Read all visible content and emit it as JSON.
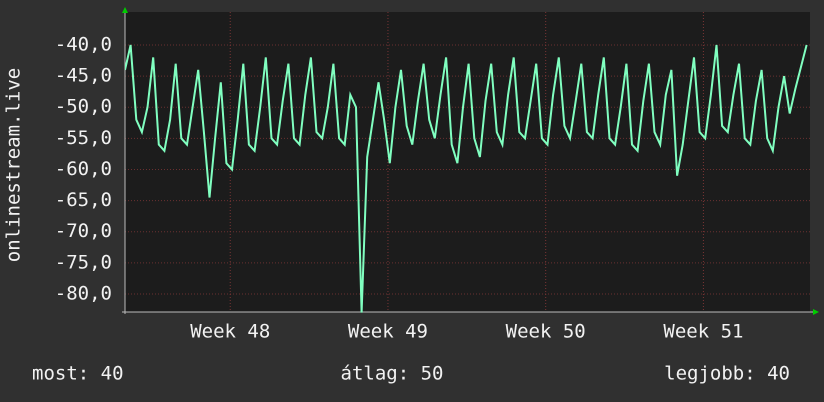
{
  "chart_data": {
    "type": "line",
    "y_label": "onlinestream.live",
    "annotations": [
      "most: 40",
      "átlag: 50",
      "legjobb: 40"
    ],
    "xlim": [
      0,
      30.4
    ],
    "xticks": [
      {
        "value": 4.67,
        "label": "Week 48"
      },
      {
        "value": 11.67,
        "label": "Week 49"
      },
      {
        "value": 18.67,
        "label": "Week 50"
      },
      {
        "value": 25.67,
        "label": "Week 51"
      }
    ],
    "ylim": [
      -82.9,
      -34.7
    ],
    "yticks": [
      {
        "value": -40,
        "label": "-40,0"
      },
      {
        "value": -45,
        "label": "-45,0"
      },
      {
        "value": -50,
        "label": "-50,0"
      },
      {
        "value": -55,
        "label": "-55,0"
      },
      {
        "value": -60,
        "label": "-60,0"
      },
      {
        "value": -65,
        "label": "-65,0"
      },
      {
        "value": -70,
        "label": "-70,0"
      },
      {
        "value": -75,
        "label": "-75,0"
      },
      {
        "value": -80,
        "label": "-80,0"
      }
    ],
    "grid": true,
    "x": [
      0,
      0.25,
      0.5,
      0.75,
      1,
      1.25,
      1.5,
      1.75,
      2,
      2.25,
      2.5,
      2.75,
      3,
      3.25,
      3.5,
      3.75,
      4,
      4.25,
      4.5,
      4.75,
      5,
      5.25,
      5.5,
      5.75,
      6,
      6.25,
      6.5,
      6.75,
      7,
      7.25,
      7.5,
      7.75,
      8,
      8.25,
      8.5,
      8.75,
      9,
      9.25,
      9.5,
      9.75,
      10,
      10.25,
      10.5,
      10.75,
      11,
      11.25,
      11.5,
      11.75,
      12,
      12.25,
      12.5,
      12.75,
      13,
      13.25,
      13.5,
      13.75,
      14,
      14.25,
      14.5,
      14.75,
      15,
      15.25,
      15.5,
      15.75,
      16,
      16.25,
      16.5,
      16.75,
      17,
      17.25,
      17.5,
      17.75,
      18,
      18.25,
      18.5,
      18.75,
      19,
      19.25,
      19.5,
      19.75,
      20,
      20.25,
      20.5,
      20.75,
      21,
      21.25,
      21.5,
      21.75,
      22,
      22.25,
      22.5,
      22.75,
      23,
      23.25,
      23.5,
      23.75,
      24,
      24.25,
      24.5,
      24.75,
      25,
      25.25,
      25.5,
      25.75,
      26,
      26.25,
      26.5,
      26.75,
      27,
      27.25,
      27.5,
      27.75,
      28,
      28.25,
      28.5,
      28.75,
      29,
      29.25,
      29.5,
      29.75,
      30.25
    ],
    "series": [
      {
        "color": "#80ffc0",
        "values": [
          -44,
          -40,
          -52,
          -54,
          -50,
          -42,
          -56,
          -57,
          -52,
          -43,
          -55,
          -56,
          -50,
          -44,
          -54,
          -64.5,
          -55,
          -46,
          -59,
          -60,
          -52,
          -43,
          -56,
          -57,
          -50,
          -42,
          -55,
          -56,
          -49,
          -43,
          -55,
          -56,
          -48,
          -42,
          -54,
          -55,
          -50,
          -43,
          -55,
          -56,
          -48,
          -50,
          -83,
          -58,
          -52,
          -46,
          -52,
          -59,
          -50,
          -44,
          -53,
          -56,
          -49,
          -43,
          -52,
          -55,
          -48,
          -42,
          -56,
          -59,
          -50,
          -43,
          -55,
          -58,
          -49,
          -43,
          -54,
          -56,
          -48,
          -42,
          -54,
          -55,
          -49,
          -43,
          -55,
          -56,
          -48,
          -42,
          -53,
          -55,
          -49,
          -43,
          -54,
          -55,
          -48,
          -42,
          -55,
          -56,
          -50,
          -43,
          -56,
          -57,
          -49,
          -43,
          -54,
          -56,
          -48,
          -44,
          -61,
          -56,
          -49,
          -42,
          -54,
          -55,
          -48,
          -40,
          -53,
          -54,
          -48,
          -43,
          -55,
          -56,
          -49,
          -44,
          -55,
          -57,
          -50,
          -45,
          -51,
          -47,
          -40
        ]
      }
    ]
  }
}
